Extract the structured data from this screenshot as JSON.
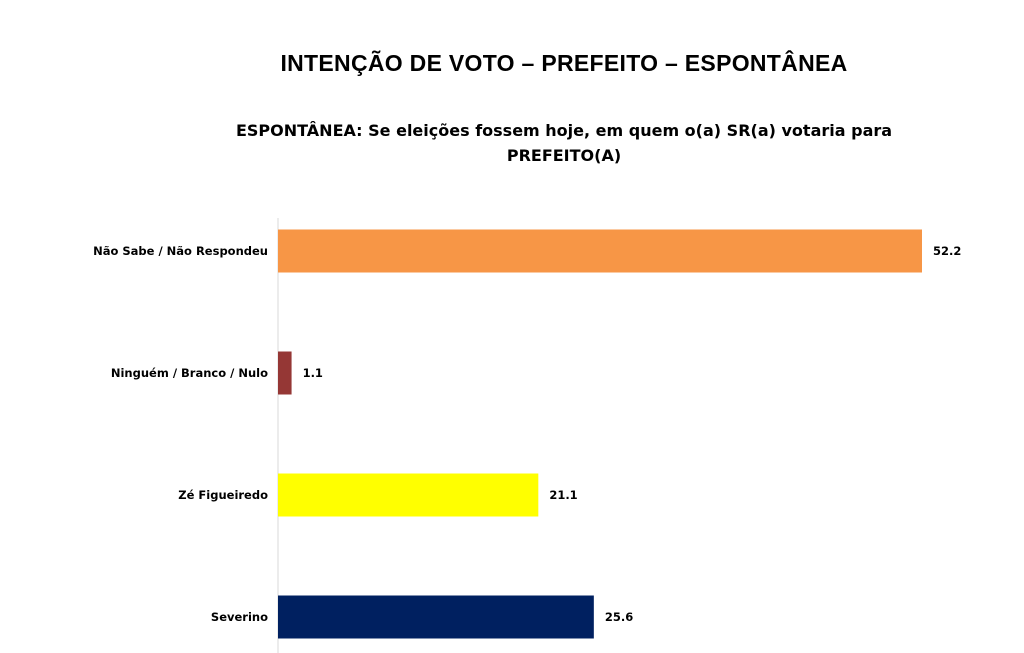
{
  "chart_data": {
    "type": "bar",
    "orientation": "horizontal",
    "title": "INTENÇÃO DE VOTO – PREFEITO – ESPONTÂNEA",
    "subtitle": "ESPONTÂNEA: Se eleições fossem hoje, em quem o(a) SR(a) votaria para PREFEITO(A)",
    "categories": [
      "Não Sabe / Não Respondeu",
      "Ninguém / Branco / Nulo",
      "Zé Figueiredo",
      "Severino"
    ],
    "values": [
      52.2,
      1.1,
      21.1,
      25.6
    ],
    "value_labels": [
      "52.2",
      "1.1",
      "21.1",
      "25.6"
    ],
    "colors": [
      "#F79646",
      "#953735",
      "#FFFF00",
      "#002060"
    ],
    "xlim": [
      0,
      52.2
    ],
    "grid": false,
    "legend": "none"
  }
}
